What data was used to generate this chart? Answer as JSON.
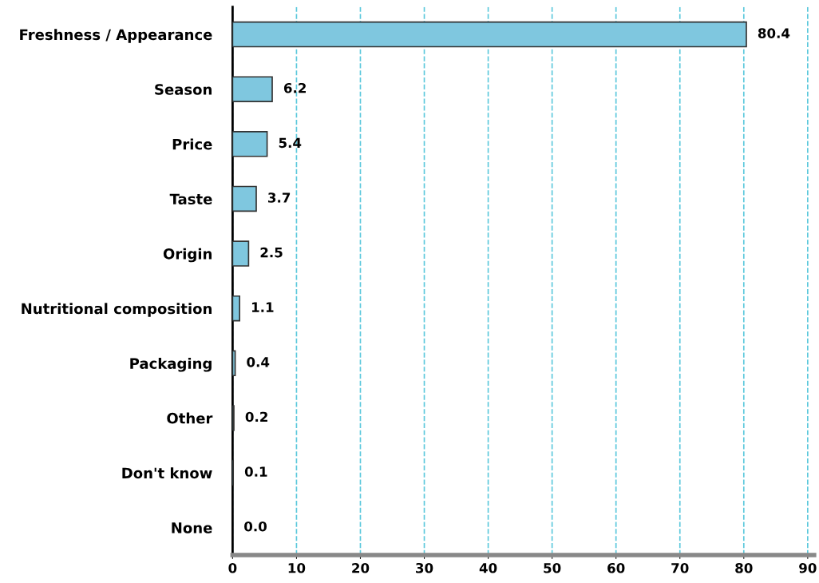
{
  "chart_data": {
    "type": "bar",
    "orientation": "horizontal",
    "categories": [
      "Freshness / Appearance",
      "Season",
      "Price",
      "Taste",
      "Origin",
      "Nutritional composition",
      "Packaging",
      "Other",
      "Don't know",
      "None"
    ],
    "values": [
      80.4,
      6.2,
      5.4,
      3.7,
      2.5,
      1.1,
      0.4,
      0.2,
      0.1,
      0.0
    ],
    "color": "#7fc7df",
    "xlim": [
      0,
      91
    ],
    "xticks": [
      0,
      10,
      20,
      30,
      40,
      50,
      60,
      70,
      80,
      90
    ],
    "value_labels": [
      "80.4",
      "6.2",
      "5.4",
      "3.7",
      "2.5",
      "1.1",
      "0.4",
      "0.2",
      "0.1",
      "0.0"
    ],
    "grid": "x"
  }
}
